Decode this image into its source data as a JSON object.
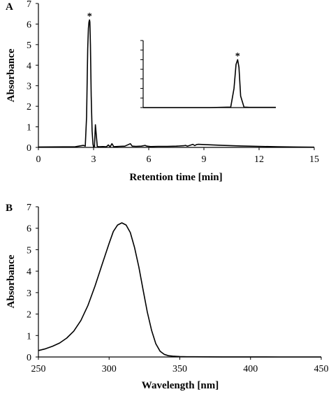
{
  "chart_data": [
    {
      "panel": "A",
      "type": "line",
      "xlabel": "Retention time [min]",
      "ylabel": "Absorbance",
      "xlim": [
        0,
        15
      ],
      "ylim": [
        0,
        7
      ],
      "xticks": [
        "0",
        "3",
        "6",
        "9",
        "12",
        "15"
      ],
      "yticks": [
        "0",
        "1",
        "2",
        "3",
        "4",
        "5",
        "6",
        "7"
      ],
      "peak_annotation": "*",
      "series": [
        {
          "x": [
            0,
            2.0,
            2.45,
            2.55,
            2.62,
            2.68,
            2.72,
            2.75,
            2.78,
            2.8,
            2.83,
            2.87,
            2.92,
            2.97,
            3.0,
            3.05,
            3.1,
            3.15,
            3.2,
            3.3,
            3.5,
            3.7,
            3.8,
            3.9,
            4.0,
            4.1,
            4.2,
            4.4,
            4.7,
            5.0,
            5.1,
            5.3,
            5.6,
            5.8,
            5.9,
            6.1,
            6.5,
            7.0,
            7.5,
            7.9,
            8.0,
            8.1,
            8.3,
            8.4,
            8.5,
            8.6,
            8.7,
            9.0,
            10.0,
            11.0,
            12.0,
            13.0,
            14.0,
            15.0
          ],
          "y": [
            0.02,
            0.03,
            0.1,
            0.06,
            1.5,
            4.8,
            5.8,
            6.1,
            6.2,
            6.1,
            5.0,
            2.5,
            0.8,
            0.15,
            0.02,
            0.05,
            1.1,
            0.6,
            0.05,
            0.03,
            0.04,
            0.03,
            0.12,
            0.03,
            0.18,
            0.03,
            0.04,
            0.05,
            0.06,
            0.18,
            0.06,
            0.05,
            0.06,
            0.1,
            0.06,
            0.04,
            0.05,
            0.05,
            0.06,
            0.08,
            0.1,
            0.06,
            0.12,
            0.15,
            0.09,
            0.14,
            0.15,
            0.14,
            0.1,
            0.07,
            0.05,
            0.03,
            0.02,
            0.01
          ]
        }
      ],
      "inset": {
        "ylim": [
          0,
          7
        ],
        "series": [
          {
            "x": [
              0,
              0.5,
              0.66,
              0.685,
              0.7,
              0.712,
              0.722,
              0.735,
              0.76,
              0.8,
              1.0
            ],
            "y": [
              0.0,
              0.0,
              0.05,
              2.0,
              4.5,
              5.0,
              4.2,
              1.2,
              0.05,
              0.02,
              0.02
            ]
          }
        ],
        "peak_annotation": "*"
      }
    },
    {
      "panel": "B",
      "type": "line",
      "xlabel": "Wavelength [nm]",
      "ylabel": "Absorbance",
      "xlim": [
        250,
        450
      ],
      "ylim": [
        0,
        7
      ],
      "xticks": [
        "250",
        "300",
        "350",
        "400",
        "450"
      ],
      "yticks": [
        "0",
        "1",
        "2",
        "3",
        "4",
        "5",
        "6",
        "7"
      ],
      "series": [
        {
          "x": [
            250,
            255,
            260,
            265,
            270,
            275,
            280,
            285,
            290,
            295,
            300,
            303,
            306,
            309,
            312,
            315,
            318,
            321,
            324,
            327,
            330,
            333,
            336,
            339,
            342,
            345,
            350,
            355,
            360,
            370,
            380,
            400,
            420,
            450
          ],
          "y": [
            0.3,
            0.38,
            0.5,
            0.65,
            0.88,
            1.2,
            1.7,
            2.4,
            3.3,
            4.3,
            5.3,
            5.85,
            6.15,
            6.25,
            6.15,
            5.8,
            5.1,
            4.2,
            3.15,
            2.1,
            1.25,
            0.62,
            0.27,
            0.12,
            0.06,
            0.04,
            0.02,
            0.01,
            0.01,
            0.005,
            0.003,
            0.002,
            0.001,
            0.0
          ]
        }
      ]
    }
  ]
}
